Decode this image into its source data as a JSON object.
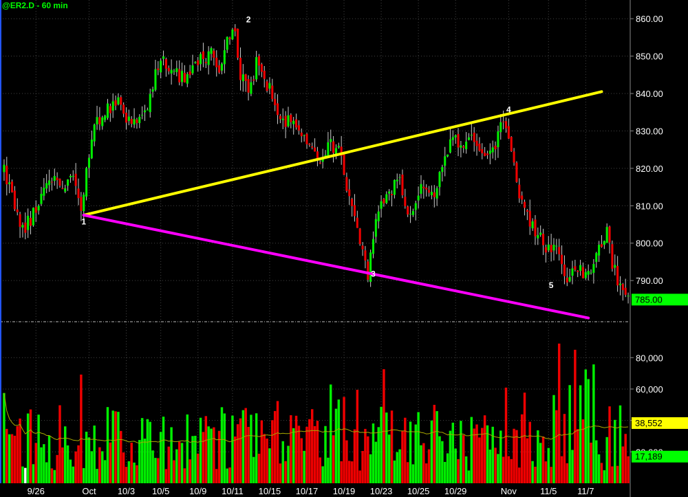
{
  "chart_data": {
    "title": "@ER2.D - 60 min",
    "price_panel": {
      "type": "candlestick",
      "ylim": [
        779,
        865
      ],
      "y_ticks": [
        790,
        800,
        810,
        820,
        830,
        840,
        850,
        860
      ],
      "y_tick_labels": [
        "790.00",
        "800.00",
        "810.00",
        "820.00",
        "830.00",
        "840.00",
        "850.00",
        "860.00"
      ],
      "last_price_label": "785.00",
      "last_price": 785.0,
      "price_path": [
        [
          0,
          819
        ],
        [
          3,
          812
        ],
        [
          7,
          803
        ],
        [
          12,
          809
        ],
        [
          17,
          818
        ],
        [
          22,
          815
        ],
        [
          26,
          819
        ],
        [
          29,
          808
        ],
        [
          31,
          820
        ],
        [
          34,
          831
        ],
        [
          38,
          835
        ],
        [
          43,
          837
        ],
        [
          47,
          832
        ],
        [
          52,
          834
        ],
        [
          55,
          839
        ],
        [
          59,
          850
        ],
        [
          63,
          846
        ],
        [
          68,
          844
        ],
        [
          73,
          848
        ],
        [
          78,
          851
        ],
        [
          81,
          846
        ],
        [
          85,
          856
        ],
        [
          87,
          857
        ],
        [
          89,
          845
        ],
        [
          92,
          840
        ],
        [
          95,
          848
        ],
        [
          100,
          841
        ],
        [
          104,
          834
        ],
        [
          109,
          831
        ],
        [
          114,
          828
        ],
        [
          118,
          822
        ],
        [
          123,
          826
        ],
        [
          126,
          825
        ],
        [
          129,
          815
        ],
        [
          132,
          806
        ],
        [
          135,
          799
        ],
        [
          137,
          792
        ],
        [
          140,
          806
        ],
        [
          145,
          814
        ],
        [
          149,
          816
        ],
        [
          153,
          807
        ],
        [
          157,
          817
        ],
        [
          161,
          812
        ],
        [
          165,
          820
        ],
        [
          169,
          829
        ],
        [
          173,
          826
        ],
        [
          177,
          828
        ],
        [
          181,
          822
        ],
        [
          185,
          827
        ],
        [
          188,
          832
        ],
        [
          191,
          826
        ],
        [
          194,
          812
        ],
        [
          198,
          805
        ],
        [
          202,
          801
        ],
        [
          206,
          797
        ],
        [
          209,
          799
        ],
        [
          212,
          790
        ],
        [
          215,
          794
        ],
        [
          219,
          791
        ],
        [
          223,
          797
        ],
        [
          227,
          803
        ],
        [
          229,
          795
        ],
        [
          232,
          788
        ],
        [
          235,
          785
        ]
      ],
      "trendlines": [
        {
          "color": "#ffff00",
          "from": [
            30,
            807.5
          ],
          "to": [
            225,
            840.5
          ]
        },
        {
          "color": "#ff00ff",
          "from": [
            30,
            807.5
          ],
          "to": [
            220,
            780
          ]
        }
      ],
      "pivot_labels": [
        {
          "text": "1",
          "bar": 30,
          "price": 805
        },
        {
          "text": "2",
          "bar": 92,
          "price": 859
        },
        {
          "text": "3",
          "bar": 139,
          "price": 791
        },
        {
          "text": "4",
          "bar": 190,
          "price": 835
        },
        {
          "text": "5",
          "bar": 206,
          "price": 788
        }
      ]
    },
    "volume_panel": {
      "type": "bar",
      "ylim": [
        0,
        102000
      ],
      "y_ticks": [
        20000,
        40000,
        60000,
        80000
      ],
      "y_tick_labels": [
        "20,000",
        "",
        "60,000",
        "80,000"
      ],
      "average_label": "38,552",
      "average_value": 38552,
      "last_volume_label": "17,189",
      "last_volume": 17189
    },
    "x_axis": {
      "bars": 236,
      "tick_labels": [
        "9/26",
        "Oct",
        "10/3",
        "10/5",
        "10/9",
        "10/11",
        "10/15",
        "10/17",
        "10/19",
        "10/23",
        "10/25",
        "10/29",
        "Nov",
        "11/5",
        "11/7"
      ],
      "tick_bars": [
        12,
        32,
        46,
        59,
        73,
        86,
        100,
        114,
        128,
        142,
        156,
        170,
        190,
        205,
        219
      ]
    },
    "colors": {
      "background": "#000000",
      "up": "#00ee00",
      "down": "#ee0000",
      "grid": "#444444",
      "axis_text": "#ffffff",
      "price_badge": "#00ff00",
      "avg_badge": "#ffff00",
      "volume_avg_line": "#aaaa00",
      "support_line": "#ff00ff",
      "resistance_line": "#ffff00"
    }
  }
}
